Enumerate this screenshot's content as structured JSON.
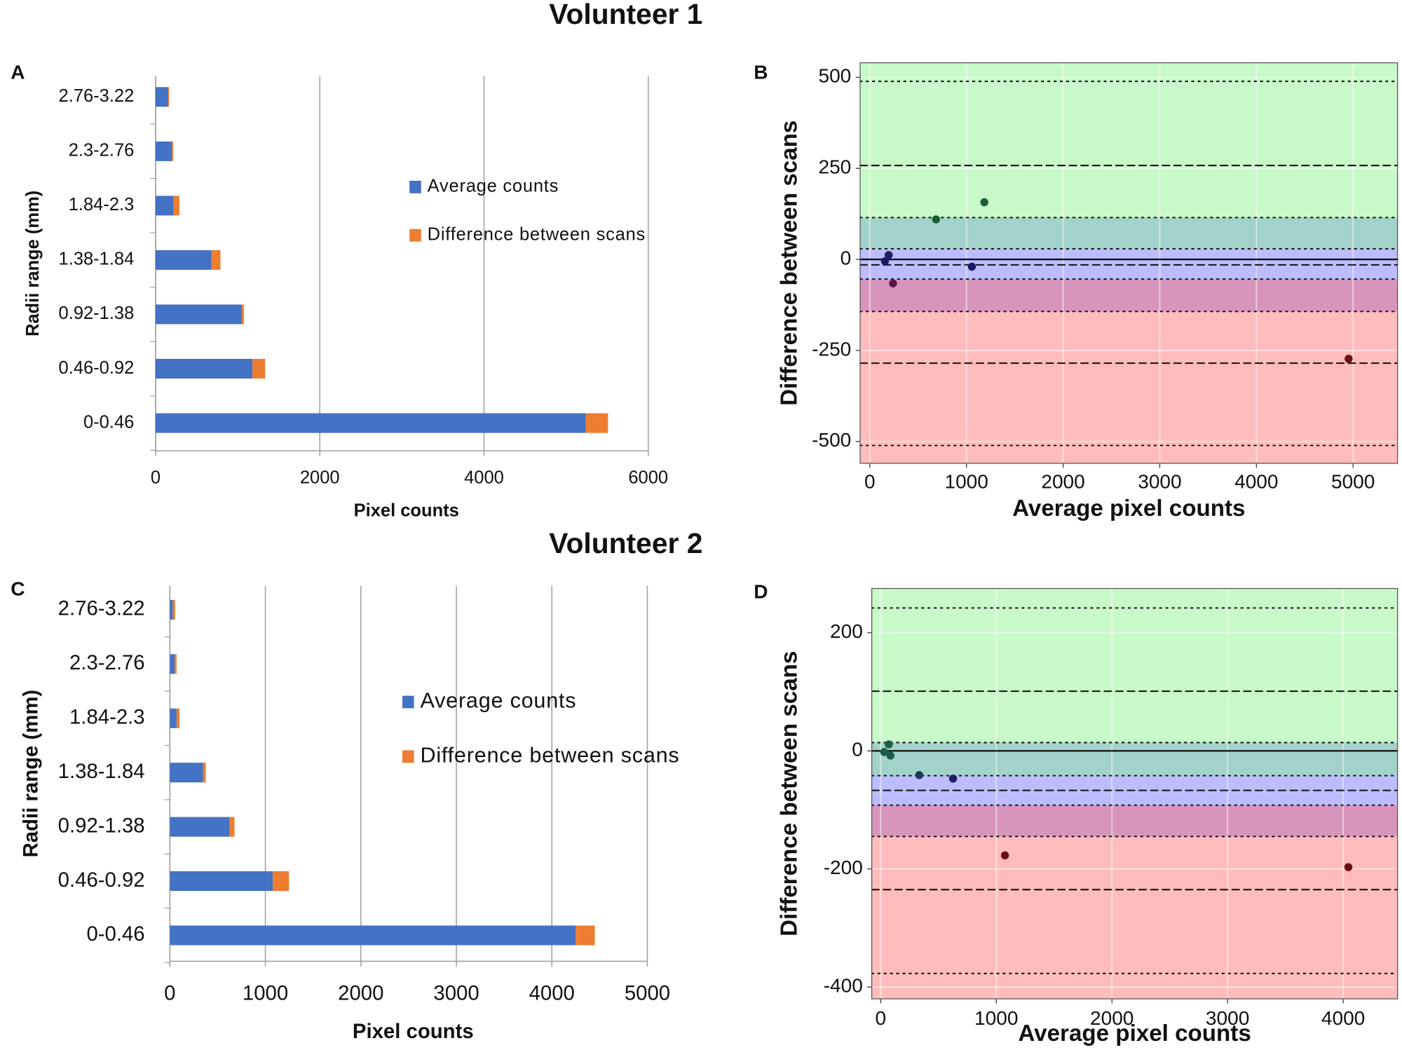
{
  "figure_titles": [
    "Volunteer 1",
    "Volunteer 2"
  ],
  "chart_data": [
    {
      "type": "bar",
      "panel": "A",
      "orientation": "horizontal",
      "stacked": true,
      "categories": [
        "0-0.46",
        "0.46-0.92",
        "0.92-1.38",
        "1.38-1.84",
        "1.84-2.3",
        "2.3-2.76",
        "2.76-3.22"
      ],
      "series": [
        {
          "name": "Average counts",
          "color": "#4472c4",
          "values": [
            5240,
            1180,
            1050,
            680,
            220,
            200,
            150
          ]
        },
        {
          "name": "Difference between scans",
          "color": "#ed7d31",
          "values": [
            270,
            155,
            25,
            110,
            70,
            15,
            15
          ]
        }
      ],
      "xlabel": "Pixel counts",
      "ylabel": "Radii range (mm)",
      "xlim": [
        0,
        6000
      ],
      "xticks": [
        0,
        2000,
        4000,
        6000
      ],
      "grid": true
    },
    {
      "type": "scatter",
      "panel": "B",
      "x": [
        157,
        195,
        240,
        685,
        1056,
        1185,
        4954
      ],
      "values": [
        -5,
        12,
        -66,
        110,
        -20,
        157,
        -273
      ],
      "point_colors": [
        "#1c1c66",
        "#1c1c66",
        "#5a1a45",
        "#1a5e35",
        "#1c1c66",
        "#1a5e35",
        "#6a1010"
      ],
      "xlabel": "Average pixel counts",
      "ylabel": "Difference between scans",
      "xlim": [
        -100,
        5460
      ],
      "xticks": [
        0,
        1000,
        2000,
        3000,
        4000,
        5000
      ],
      "ylim": [
        -560,
        540
      ],
      "yticks": [
        -500,
        -250,
        0,
        250,
        500
      ],
      "bands": [
        {
          "from": -143,
          "to": 115,
          "color": "#6060ff"
        },
        {
          "from": 29,
          "to": 540,
          "color": "#7ff07f"
        },
        {
          "from": -560,
          "to": -54,
          "color": "#ff6060"
        }
      ],
      "hlines": [
        {
          "value": 489,
          "style": "dotted"
        },
        {
          "value": 258,
          "style": "dashed"
        },
        {
          "value": 115,
          "style": "dotted"
        },
        {
          "value": 29,
          "style": "dotted"
        },
        {
          "value": -15,
          "style": "dashed"
        },
        {
          "value": -54,
          "style": "dotted"
        },
        {
          "value": -143,
          "style": "dotted"
        },
        {
          "value": -285,
          "style": "dashed"
        },
        {
          "value": -511,
          "style": "dotted"
        },
        {
          "value": 0,
          "style": "solid"
        }
      ],
      "grid": true
    },
    {
      "type": "bar",
      "panel": "C",
      "orientation": "horizontal",
      "stacked": true,
      "categories": [
        "0-0.46",
        "0.46-0.92",
        "0.92-1.38",
        "1.38-1.84",
        "1.84-2.3",
        "2.3-2.76",
        "2.76-3.22"
      ],
      "series": [
        {
          "name": "Average counts",
          "color": "#4472c4",
          "values": [
            4250,
            1077,
            627,
            346,
            70,
            50,
            30
          ]
        },
        {
          "name": "Difference between scans",
          "color": "#ed7d31",
          "values": [
            200,
            170,
            50,
            30,
            30,
            20,
            25
          ]
        }
      ],
      "xlabel": "Pixel counts",
      "ylabel": "Radii range (mm)",
      "xlim": [
        0,
        5000
      ],
      "xticks": [
        0,
        1000,
        2000,
        3000,
        4000,
        5000
      ],
      "grid": true
    },
    {
      "type": "scatter",
      "panel": "D",
      "x": [
        31,
        70,
        85,
        333,
        626,
        1075,
        4045
      ],
      "values": [
        -2,
        11,
        -8,
        -41,
        -47,
        -177,
        -197
      ],
      "point_colors": [
        "#1a5e45",
        "#1a5e45",
        "#1a5e45",
        "#1c3a55",
        "#1c1c66",
        "#6a1010",
        "#6a1010"
      ],
      "xlabel": "Average pixel counts",
      "ylabel": "Difference between scans",
      "xlim": [
        -77,
        4470
      ],
      "xticks": [
        0,
        1000,
        2000,
        3000,
        4000
      ],
      "ylim": [
        -420,
        275
      ],
      "yticks": [
        -400,
        -200,
        0,
        200
      ],
      "bands": [
        {
          "from": -145,
          "to": 14,
          "color": "#6060ff"
        },
        {
          "from": -42,
          "to": 275,
          "color": "#7ff07f"
        },
        {
          "from": -420,
          "to": -92,
          "color": "#ff6060"
        }
      ],
      "hlines": [
        {
          "value": 242,
          "style": "dotted"
        },
        {
          "value": 101,
          "style": "dashed"
        },
        {
          "value": 14,
          "style": "dotted"
        },
        {
          "value": -42,
          "style": "dotted"
        },
        {
          "value": -67,
          "style": "dashed"
        },
        {
          "value": -92,
          "style": "dotted"
        },
        {
          "value": -145,
          "style": "dotted"
        },
        {
          "value": -235,
          "style": "dashed"
        },
        {
          "value": -377,
          "style": "dotted"
        },
        {
          "value": 0,
          "style": "solid"
        }
      ],
      "grid": true
    }
  ]
}
